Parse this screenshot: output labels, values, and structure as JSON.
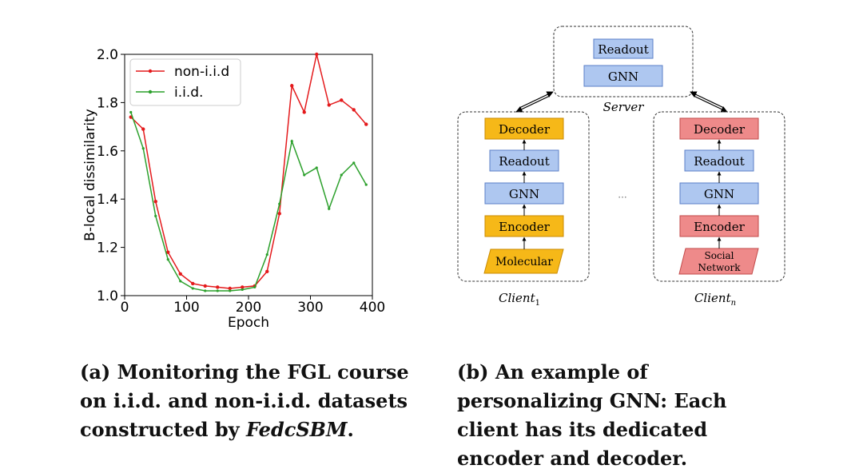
{
  "chart_data": {
    "type": "line",
    "xlabel": "Epoch",
    "ylabel": "B-local dissimilarity",
    "xlim": [
      0,
      400
    ],
    "ylim": [
      1.0,
      2.0
    ],
    "xticks": [
      "0",
      "100",
      "200",
      "300",
      "400"
    ],
    "yticks": [
      "1.0",
      "1.2",
      "1.4",
      "1.6",
      "1.8",
      "2.0"
    ],
    "legend": "top-left",
    "grid": false,
    "series": [
      {
        "name": "non-i.i.d",
        "color": "#e41a1c",
        "x": [
          10,
          30,
          50,
          70,
          90,
          110,
          130,
          150,
          170,
          190,
          210,
          230,
          250,
          270,
          290,
          310,
          330,
          350,
          370,
          390
        ],
        "y": [
          1.74,
          1.69,
          1.39,
          1.18,
          1.09,
          1.05,
          1.04,
          1.035,
          1.03,
          1.035,
          1.04,
          1.1,
          1.34,
          1.87,
          1.76,
          2.0,
          1.79,
          1.81,
          1.77,
          1.71
        ]
      },
      {
        "name": "i.i.d.",
        "color": "#2ca02c",
        "x": [
          10,
          30,
          50,
          70,
          90,
          110,
          130,
          150,
          170,
          190,
          210,
          230,
          250,
          270,
          290,
          310,
          330,
          350,
          370,
          390
        ],
        "y": [
          1.76,
          1.61,
          1.33,
          1.15,
          1.06,
          1.03,
          1.02,
          1.02,
          1.02,
          1.025,
          1.035,
          1.17,
          1.38,
          1.64,
          1.5,
          1.53,
          1.36,
          1.5,
          1.55,
          1.46
        ]
      }
    ]
  },
  "diagram": {
    "server": {
      "label": "Server",
      "boxes": [
        "Readout",
        "GNN"
      ]
    },
    "client_left": {
      "label": "Client",
      "subscript": "1",
      "boxes": [
        "Decoder",
        "Readout",
        "GNN",
        "Encoder"
      ],
      "input": [
        "Molecular"
      ]
    },
    "client_right": {
      "label": "Client",
      "subscript": "n",
      "boxes": [
        "Decoder",
        "Readout",
        "GNN",
        "Encoder"
      ],
      "input": [
        "Social",
        "Network"
      ]
    },
    "ellipsis": "···",
    "colors": {
      "blue_box": "#aec7f0",
      "blue_border": "#5b7fc7",
      "orange_box": "#f6b818",
      "orange_border": "#c98a00",
      "red_box": "#ee8a8a",
      "red_border": "#c24a4a"
    }
  },
  "captions": {
    "a_part1": "(a) Monitoring the FGL course on i.i.d. and non-i.i.d. datasets constructed by ",
    "a_italic": "FedcSBM",
    "a_end": ".",
    "b": "(b) An example of personalizing GNN: Each client has its dedicated encoder and decoder."
  }
}
